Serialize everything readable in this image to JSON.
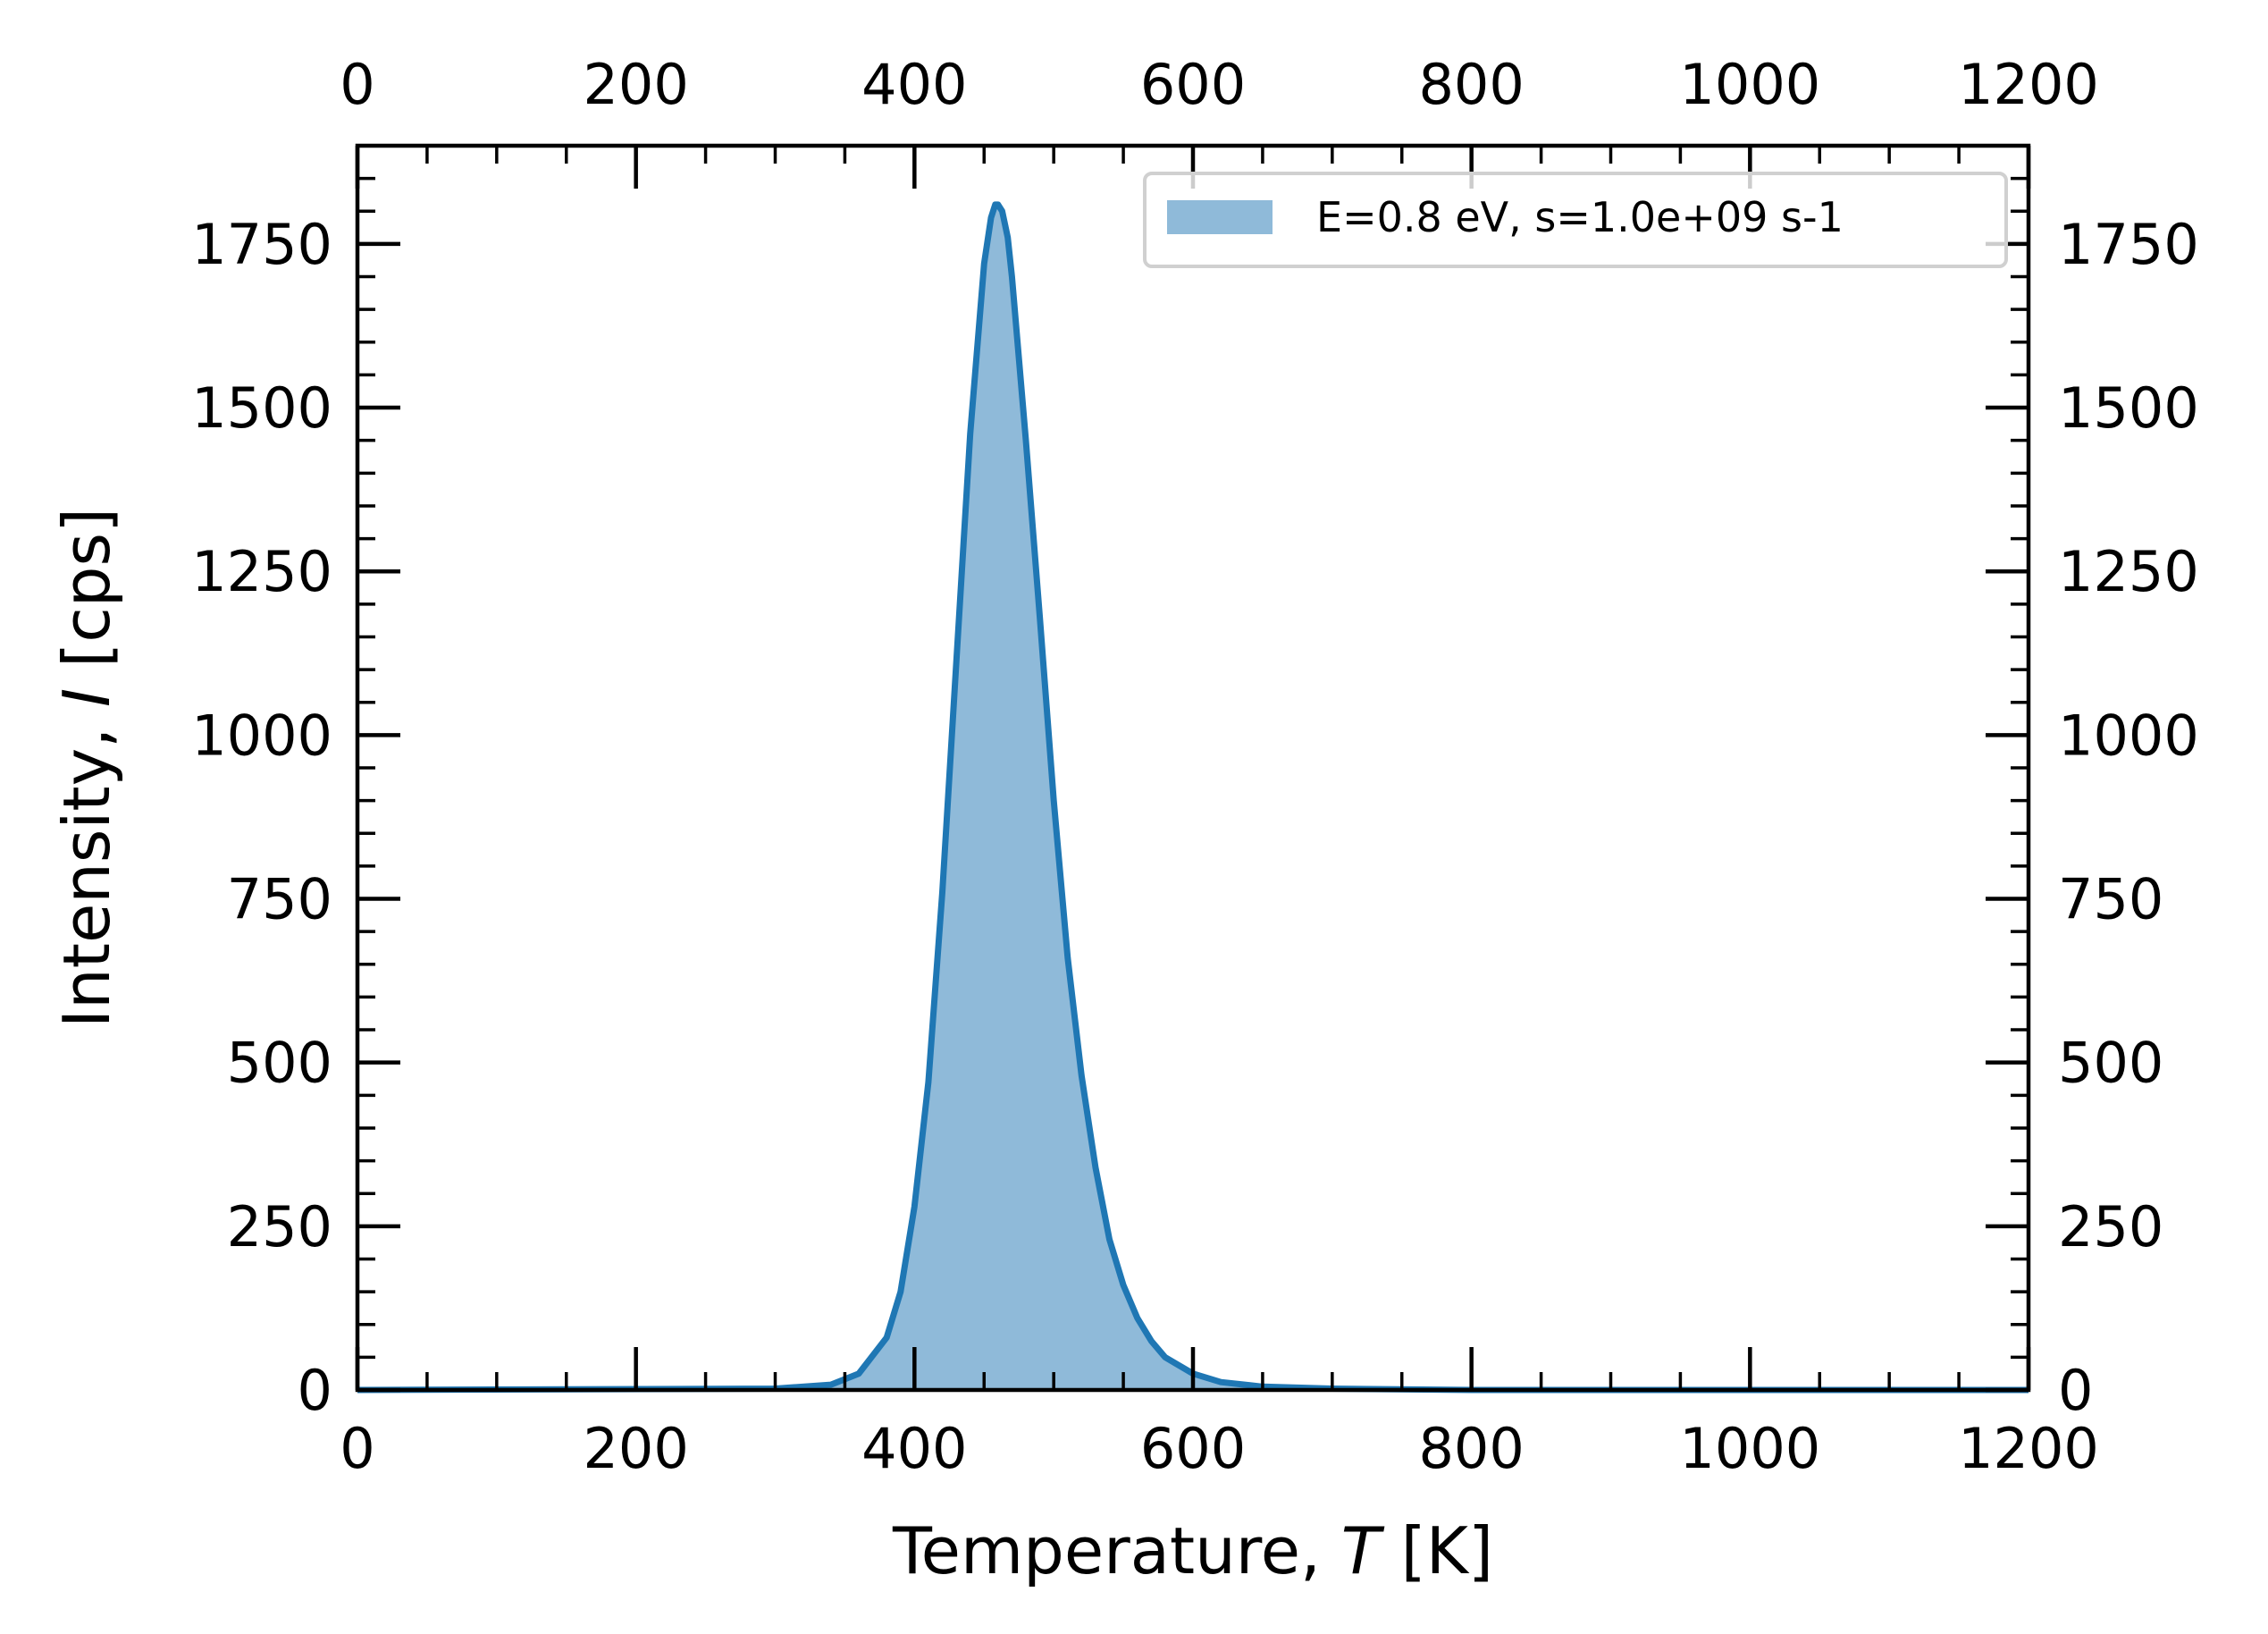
{
  "chart_data": {
    "type": "area",
    "xlabel": "Temperature, T [K]",
    "xlabel_parts": {
      "prefix": "Temperature, ",
      "symbol": "T",
      "suffix": " [K]"
    },
    "ylabel": "Intensity, I [cps]",
    "ylabel_parts": {
      "prefix": "Intensity, ",
      "symbol": "I",
      "suffix": " [cps]"
    },
    "xlim": [
      0,
      1200
    ],
    "ylim": [
      0,
      1900
    ],
    "xticks": [
      0,
      200,
      400,
      600,
      800,
      1000,
      1200
    ],
    "yticks": [
      0,
      250,
      500,
      750,
      1000,
      1250,
      1500,
      1750
    ],
    "xtick_labels": [
      "0",
      "200",
      "400",
      "600",
      "800",
      "1000",
      "1200"
    ],
    "ytick_labels": [
      "0",
      "250",
      "500",
      "750",
      "1000",
      "1250",
      "1500",
      "1750"
    ],
    "x_minor_step": 50,
    "y_minor_step": 50,
    "mirror_axes": true,
    "grid": false,
    "legend_position": "top-right",
    "series": [
      {
        "name": "E=0.8 eV, s=1.0e+09 s-1",
        "line_color": "#1f77b4",
        "fill_color": "#8fbad9",
        "x": [
          0,
          300,
          340,
          360,
          380,
          390,
          400,
          410,
          420,
          430,
          440,
          450,
          455,
          458,
          460,
          463,
          467,
          470,
          480,
          490,
          500,
          510,
          520,
          530,
          540,
          550,
          560,
          570,
          580,
          600,
          620,
          650,
          700,
          800,
          1000,
          1200
        ],
        "y": [
          0,
          2,
          8,
          25,
          80,
          150,
          280,
          470,
          760,
          1110,
          1460,
          1720,
          1790,
          1810,
          1810,
          1800,
          1760,
          1700,
          1450,
          1180,
          900,
          660,
          480,
          340,
          230,
          160,
          110,
          75,
          50,
          25,
          12,
          5,
          2,
          0,
          0,
          0
        ]
      }
    ]
  }
}
